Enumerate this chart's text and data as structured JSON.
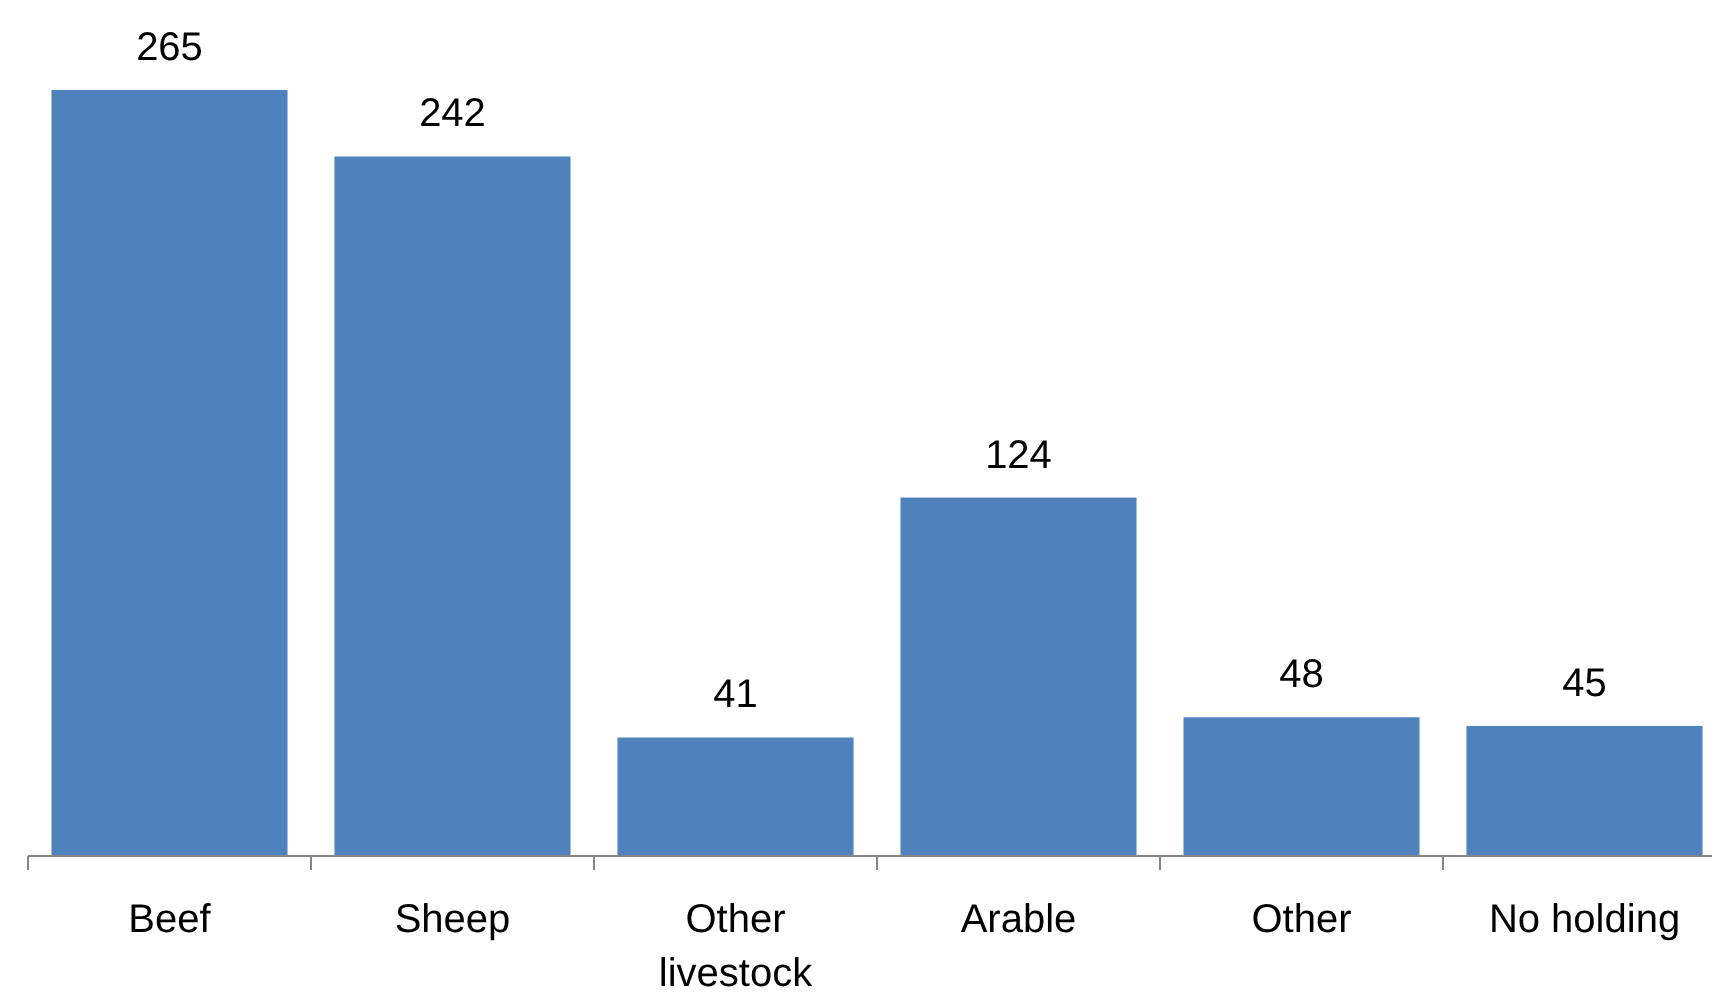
{
  "chart_data": {
    "type": "bar",
    "categories": [
      "Beef",
      "Sheep",
      "Other livestock",
      "Arable",
      "Other",
      "No holding"
    ],
    "values": [
      265,
      242,
      41,
      124,
      48,
      45
    ],
    "color": "#4f81bd",
    "data_labels": true
  }
}
